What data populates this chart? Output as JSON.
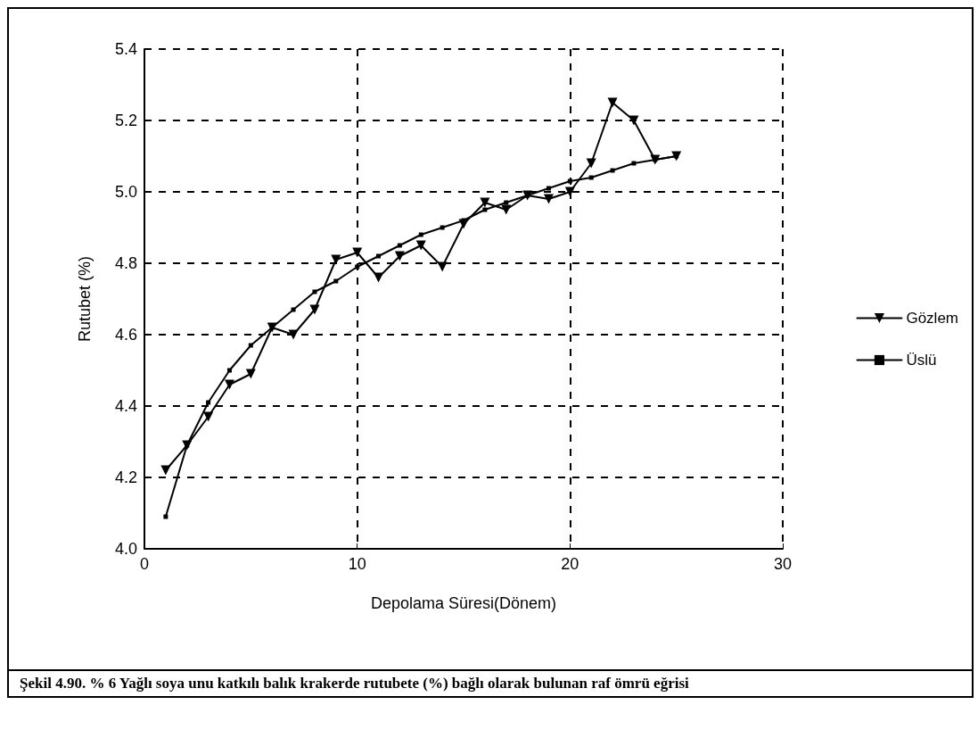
{
  "chart_data": {
    "type": "line",
    "xlabel": "Depolama Süresi(Dönem)",
    "ylabel": "Rutubet (%)",
    "x": [
      1,
      2,
      3,
      4,
      5,
      6,
      7,
      8,
      9,
      10,
      11,
      12,
      13,
      14,
      15,
      16,
      17,
      18,
      19,
      20,
      21,
      22,
      23,
      24,
      25
    ],
    "series": [
      {
        "name": "Gözlem",
        "color": "#000000",
        "marker": "triangle",
        "values": [
          4.22,
          4.29,
          4.37,
          4.46,
          4.49,
          4.62,
          4.6,
          4.67,
          4.81,
          4.83,
          4.76,
          4.82,
          4.85,
          4.79,
          4.91,
          4.97,
          4.95,
          4.99,
          4.98,
          5.0,
          5.08,
          5.25,
          5.2,
          5.09,
          5.1
        ]
      },
      {
        "name": "Üslü",
        "color": "#000000",
        "marker": "square",
        "values": [
          4.09,
          4.29,
          4.41,
          4.5,
          4.57,
          4.62,
          4.67,
          4.72,
          4.75,
          4.79,
          4.82,
          4.85,
          4.88,
          4.9,
          4.92,
          4.95,
          4.97,
          4.99,
          5.01,
          5.03,
          5.04,
          5.06,
          5.08,
          5.09,
          5.1
        ]
      }
    ],
    "xlim": [
      0,
      30
    ],
    "xticks": [
      0,
      10,
      20,
      30
    ],
    "ylim": [
      4.0,
      5.4
    ],
    "yticks": [
      {
        "value": 4,
        "label": "4.0"
      },
      4.2,
      4.4,
      4.6,
      4.8,
      {
        "value": 5,
        "label": "5.0"
      },
      5.2,
      5.4
    ],
    "grid": true,
    "legend": "right",
    "line_style": "solid",
    "annotations": [
      "Şekil 4.90.    % 6 Yağlı soya unu katkılı balık krakerde rutubete (%) bağlı olarak bulunan raf ömrü eğrisi"
    ]
  }
}
